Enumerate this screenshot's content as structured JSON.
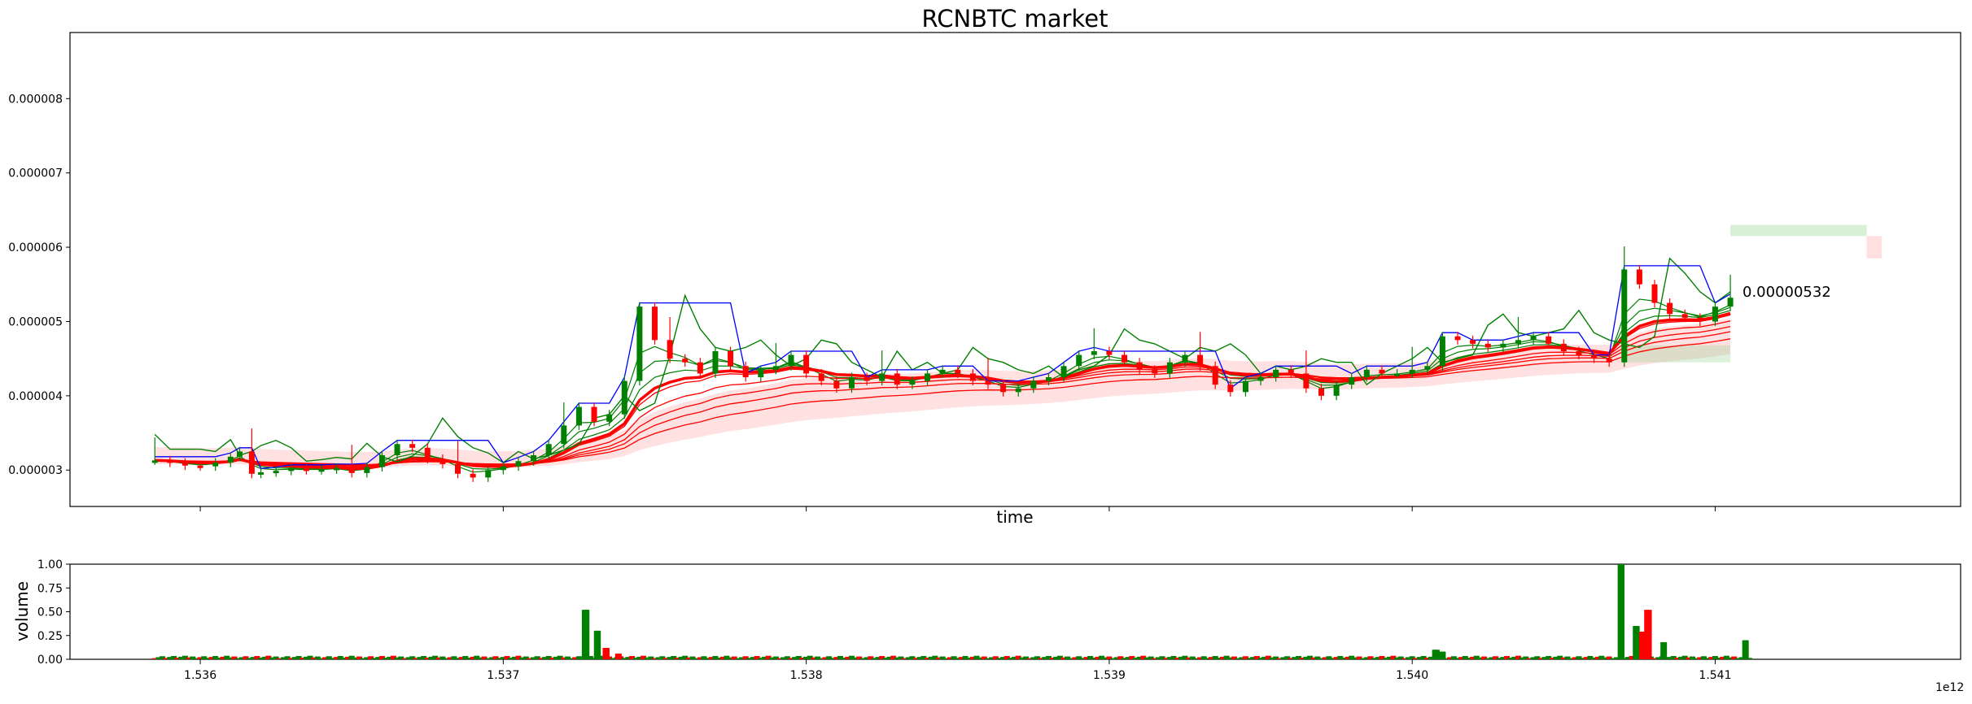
{
  "chart_data": [
    {
      "type": "candlestick",
      "title": "RCNBTC market",
      "xlabel": "time",
      "ylabel": "",
      "x_ticks": [
        1.536,
        1.537,
        1.538,
        1.539,
        1.54,
        1.541
      ],
      "x_tick_scale_label": "1e12",
      "xlim": [
        1.53557,
        1.54181
      ],
      "y_ticks": [
        {
          "value": 3e-06,
          "label": "0.000003"
        },
        {
          "value": 4e-06,
          "label": "0.000004"
        },
        {
          "value": 5e-06,
          "label": "0.000005"
        },
        {
          "value": 6e-06,
          "label": "0.000006"
        },
        {
          "value": 7e-06,
          "label": "0.000007"
        },
        {
          "value": 8e-06,
          "label": "0.000008"
        }
      ],
      "ylim": [
        2.51e-06,
        8.89e-06
      ],
      "close_series": [
        [
          1.53585,
          3.13
        ],
        [
          1.5359,
          3.1
        ],
        [
          1.53595,
          3.06
        ],
        [
          1.536,
          3.05
        ],
        [
          1.53605,
          3.1
        ],
        [
          1.5361,
          3.18
        ],
        [
          1.53613,
          3.25
        ],
        [
          1.53617,
          2.95
        ],
        [
          1.5362,
          2.97
        ],
        [
          1.53625,
          2.99
        ],
        [
          1.5363,
          3.02
        ],
        [
          1.53635,
          3.0
        ],
        [
          1.5364,
          3.01
        ],
        [
          1.53645,
          3.03
        ],
        [
          1.5365,
          2.96
        ],
        [
          1.53655,
          3.04
        ],
        [
          1.5366,
          3.2
        ],
        [
          1.53665,
          3.35
        ],
        [
          1.5367,
          3.3
        ],
        [
          1.53675,
          3.15
        ],
        [
          1.5368,
          3.08
        ],
        [
          1.53685,
          2.95
        ],
        [
          1.5369,
          2.9
        ],
        [
          1.53695,
          3.0
        ],
        [
          1.537,
          3.05
        ],
        [
          1.53705,
          3.12
        ],
        [
          1.5371,
          3.2
        ],
        [
          1.53715,
          3.35
        ],
        [
          1.5372,
          3.6
        ],
        [
          1.53725,
          3.85
        ],
        [
          1.5373,
          3.65
        ],
        [
          1.53735,
          3.75
        ],
        [
          1.5374,
          4.2
        ],
        [
          1.53745,
          5.2
        ],
        [
          1.5375,
          4.75
        ],
        [
          1.53755,
          4.5
        ],
        [
          1.5376,
          4.45
        ],
        [
          1.53765,
          4.3
        ],
        [
          1.5377,
          4.6
        ],
        [
          1.53775,
          4.4
        ],
        [
          1.5378,
          4.25
        ],
        [
          1.53785,
          4.35
        ],
        [
          1.5379,
          4.4
        ],
        [
          1.53795,
          4.55
        ],
        [
          1.538,
          4.3
        ],
        [
          1.53805,
          4.2
        ],
        [
          1.5381,
          4.1
        ],
        [
          1.53815,
          4.25
        ],
        [
          1.5382,
          4.2
        ],
        [
          1.53825,
          4.3
        ],
        [
          1.5383,
          4.15
        ],
        [
          1.53835,
          4.2
        ],
        [
          1.5384,
          4.3
        ],
        [
          1.53845,
          4.35
        ],
        [
          1.5385,
          4.3
        ],
        [
          1.53855,
          4.2
        ],
        [
          1.5386,
          4.15
        ],
        [
          1.53865,
          4.05
        ],
        [
          1.5387,
          4.1
        ],
        [
          1.53875,
          4.2
        ],
        [
          1.5388,
          4.25
        ],
        [
          1.53885,
          4.4
        ],
        [
          1.5389,
          4.55
        ],
        [
          1.53895,
          4.6
        ],
        [
          1.539,
          4.55
        ],
        [
          1.53905,
          4.45
        ],
        [
          1.5391,
          4.35
        ],
        [
          1.53915,
          4.3
        ],
        [
          1.5392,
          4.45
        ],
        [
          1.53925,
          4.55
        ],
        [
          1.5393,
          4.4
        ],
        [
          1.53935,
          4.15
        ],
        [
          1.5394,
          4.05
        ],
        [
          1.53945,
          4.2
        ],
        [
          1.5395,
          4.25
        ],
        [
          1.53955,
          4.35
        ],
        [
          1.5396,
          4.3
        ],
        [
          1.53965,
          4.1
        ],
        [
          1.5397,
          4.0
        ],
        [
          1.53975,
          4.15
        ],
        [
          1.5398,
          4.25
        ],
        [
          1.53985,
          4.35
        ],
        [
          1.5399,
          4.3
        ],
        [
          1.53995,
          4.3
        ],
        [
          1.54,
          4.35
        ],
        [
          1.54005,
          4.4
        ],
        [
          1.5401,
          4.8
        ],
        [
          1.54015,
          4.75
        ],
        [
          1.5402,
          4.7
        ],
        [
          1.54025,
          4.65
        ],
        [
          1.5403,
          4.7
        ],
        [
          1.54035,
          4.75
        ],
        [
          1.5404,
          4.8
        ],
        [
          1.54045,
          4.7
        ],
        [
          1.5405,
          4.6
        ],
        [
          1.54055,
          4.55
        ],
        [
          1.5406,
          4.5
        ],
        [
          1.54065,
          4.45
        ],
        [
          1.5407,
          5.7
        ],
        [
          1.54075,
          5.5
        ],
        [
          1.5408,
          5.25
        ],
        [
          1.54085,
          5.1
        ],
        [
          1.5409,
          5.05
        ],
        [
          1.54095,
          5.0
        ],
        [
          1.541,
          5.2
        ],
        [
          1.54105,
          5.32
        ]
      ],
      "annotation": "0.00000532",
      "colors": {
        "up": "#008000",
        "down": "#ff0000",
        "ema": "#ff0000",
        "top_line": "#0000ff"
      }
    },
    {
      "type": "bar",
      "ylabel": "volume",
      "ylim": [
        0,
        1.0
      ],
      "y_ticks": [
        {
          "value": 0.0,
          "label": "0.00"
        },
        {
          "value": 0.25,
          "label": "0.25"
        },
        {
          "value": 0.5,
          "label": "0.50"
        },
        {
          "value": 0.75,
          "label": "0.75"
        },
        {
          "value": 1.0,
          "label": "1.00"
        }
      ],
      "x_ticks": [
        1.536,
        1.537,
        1.538,
        1.539,
        1.54,
        1.541
      ],
      "x_tick_labels": [
        "1.536",
        "1.537",
        "1.538",
        "1.539",
        "1.540",
        "1.541"
      ],
      "x_tick_scale_label": "1e12",
      "volume_spikes": [
        [
          1.53727,
          0.52,
          "up"
        ],
        [
          1.53731,
          0.3,
          "up"
        ],
        [
          1.53734,
          0.12,
          "down"
        ],
        [
          1.53738,
          0.06,
          "down"
        ],
        [
          1.54008,
          0.1,
          "up"
        ],
        [
          1.5401,
          0.08,
          "up"
        ],
        [
          1.54069,
          1.0,
          "up"
        ],
        [
          1.54074,
          0.35,
          "up"
        ],
        [
          1.54076,
          0.29,
          "down"
        ],
        [
          1.54078,
          0.52,
          "down"
        ],
        [
          1.54083,
          0.18,
          "up"
        ],
        [
          1.5411,
          0.2,
          "up"
        ]
      ]
    }
  ]
}
